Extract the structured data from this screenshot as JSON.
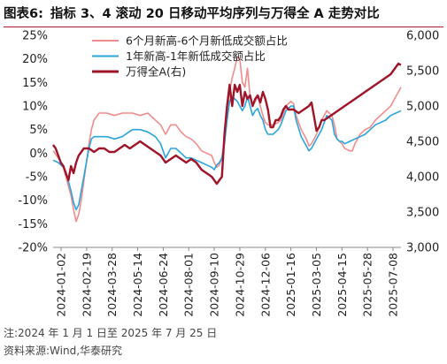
{
  "header": {
    "figure_label": "图表6:",
    "title": "指标 3、4 滚动 20 日移动平均序列与万得全 A 走势对比"
  },
  "footer": {
    "note": "注:2024 年 1 月 1 日至 2025 年 7 月 25 日",
    "source": "资料来源:Wind,华泰研究"
  },
  "colors": {
    "series_pink": "#f08c8c",
    "series_blue": "#2aa4dc",
    "series_darkred": "#a0142a"
  },
  "chart_data": {
    "type": "line",
    "x_tick_labels": [
      "2024-01-02",
      "2024-02-19",
      "2024-03-28",
      "2024-05-14",
      "2024-06-24",
      "2024-08-01",
      "2024-09-10",
      "2024-10-29",
      "2024-12-06",
      "2025-01-16",
      "2025-03-05",
      "2025-04-15",
      "2025-05-28",
      "2025-07-08"
    ],
    "x_domain": [
      0,
      136
    ],
    "y_left": {
      "ticks": [
        "25%",
        "20%",
        "15%",
        "10%",
        "5%",
        "0%",
        "-5%",
        "-10%",
        "-15%",
        "-20%"
      ],
      "lim": [
        -20,
        25
      ]
    },
    "y_right": {
      "ticks": [
        "6,000",
        "5,500",
        "5,000",
        "4,500",
        "4,000",
        "3,500",
        "3,000"
      ],
      "lim": [
        3000,
        6000
      ]
    },
    "legend_position": "top-center",
    "grid": false,
    "series": [
      {
        "name": "6个月新高-6个月新低成交额占比",
        "axis": "left",
        "points": [
          [
            0,
            0.5
          ],
          [
            2,
            -1
          ],
          [
            4,
            -3
          ],
          [
            5,
            -5
          ],
          [
            6,
            -7
          ],
          [
            7,
            -9
          ],
          [
            8,
            -12
          ],
          [
            9,
            -14.5
          ],
          [
            10,
            -13
          ],
          [
            11,
            -10
          ],
          [
            12,
            -6
          ],
          [
            13,
            -2
          ],
          [
            14,
            2
          ],
          [
            15,
            5
          ],
          [
            16,
            7
          ],
          [
            18,
            8.5
          ],
          [
            21,
            8.5
          ],
          [
            24,
            8
          ],
          [
            27,
            8.5
          ],
          [
            31,
            8.5
          ],
          [
            34,
            8
          ],
          [
            37,
            8.5
          ],
          [
            40,
            7
          ],
          [
            42,
            6
          ],
          [
            44,
            4
          ],
          [
            46,
            6
          ],
          [
            48,
            6
          ],
          [
            50,
            4.5
          ],
          [
            52,
            3.5
          ],
          [
            54,
            3
          ],
          [
            56,
            2
          ],
          [
            58,
            0.5
          ],
          [
            60,
            0
          ],
          [
            62,
            -0.5
          ],
          [
            63,
            -2
          ],
          [
            64,
            -3
          ],
          [
            65,
            -2.5
          ],
          [
            66,
            -1
          ],
          [
            67,
            3
          ],
          [
            68,
            8
          ],
          [
            69,
            13
          ],
          [
            70,
            16
          ],
          [
            71,
            18
          ],
          [
            72,
            20.5
          ],
          [
            73,
            20
          ],
          [
            74,
            15
          ],
          [
            75,
            14
          ],
          [
            76,
            18
          ],
          [
            77,
            12
          ],
          [
            78,
            10
          ],
          [
            79,
            11
          ],
          [
            80,
            12
          ],
          [
            81,
            10
          ],
          [
            82,
            8
          ],
          [
            83,
            6.5
          ],
          [
            84,
            6
          ],
          [
            86,
            6
          ],
          [
            88,
            6.5
          ],
          [
            89,
            7
          ],
          [
            91,
            10
          ],
          [
            93,
            11
          ],
          [
            94,
            10.5
          ],
          [
            95,
            8
          ],
          [
            97,
            5
          ],
          [
            99,
            3
          ],
          [
            100,
            1.5
          ],
          [
            101,
            2
          ],
          [
            103,
            4
          ],
          [
            105,
            7
          ],
          [
            107,
            9
          ],
          [
            109,
            8
          ],
          [
            110,
            6
          ],
          [
            111,
            3
          ],
          [
            112,
            2.5
          ],
          [
            113,
            2
          ],
          [
            114,
            1
          ],
          [
            116,
            0.5
          ],
          [
            117,
            0.5
          ],
          [
            118,
            2
          ],
          [
            120,
            4
          ],
          [
            122,
            5
          ],
          [
            124,
            5.5
          ],
          [
            126,
            7
          ],
          [
            128,
            8
          ],
          [
            130,
            9
          ],
          [
            132,
            10
          ],
          [
            134,
            12
          ],
          [
            136,
            14
          ]
        ]
      },
      {
        "name": "1年新高-1年新低成交额占比",
        "axis": "left",
        "points": [
          [
            0,
            -1.5
          ],
          [
            2,
            -2
          ],
          [
            4,
            -3
          ],
          [
            5,
            -4
          ],
          [
            6,
            -6
          ],
          [
            7,
            -8
          ],
          [
            8,
            -10.5
          ],
          [
            9,
            -12
          ],
          [
            10,
            -11
          ],
          [
            11,
            -8
          ],
          [
            12,
            -5
          ],
          [
            13,
            -2
          ],
          [
            14,
            1
          ],
          [
            15,
            3
          ],
          [
            16,
            3.5
          ],
          [
            18,
            3.5
          ],
          [
            21,
            3.5
          ],
          [
            24,
            3
          ],
          [
            27,
            3.5
          ],
          [
            31,
            5
          ],
          [
            34,
            5
          ],
          [
            37,
            4.5
          ],
          [
            40,
            3.5
          ],
          [
            42,
            2
          ],
          [
            44,
            -1
          ],
          [
            46,
            1
          ],
          [
            48,
            1
          ],
          [
            50,
            0
          ],
          [
            52,
            -1
          ],
          [
            54,
            -1
          ],
          [
            56,
            -1.5
          ],
          [
            58,
            -2
          ],
          [
            60,
            -2.5
          ],
          [
            62,
            -3
          ],
          [
            63,
            -3.5
          ],
          [
            64,
            -2.5
          ],
          [
            65,
            -2
          ],
          [
            66,
            -1
          ],
          [
            67,
            2
          ],
          [
            68,
            7
          ],
          [
            69,
            11
          ],
          [
            70,
            12
          ],
          [
            71,
            11.5
          ],
          [
            72,
            11
          ],
          [
            73,
            10
          ],
          [
            74,
            9
          ],
          [
            75,
            10
          ],
          [
            76,
            12
          ],
          [
            77,
            10
          ],
          [
            78,
            8
          ],
          [
            79,
            9
          ],
          [
            80,
            9.5
          ],
          [
            81,
            8
          ],
          [
            82,
            7
          ],
          [
            83,
            5
          ],
          [
            84,
            4
          ],
          [
            86,
            4
          ],
          [
            88,
            5
          ],
          [
            89,
            6
          ],
          [
            91,
            9
          ],
          [
            93,
            10
          ],
          [
            94,
            10
          ],
          [
            95,
            7
          ],
          [
            97,
            3.5
          ],
          [
            99,
            1.5
          ],
          [
            100,
            0.5
          ],
          [
            101,
            1
          ],
          [
            103,
            3
          ],
          [
            105,
            5
          ],
          [
            107,
            8
          ],
          [
            109,
            7
          ],
          [
            110,
            4
          ],
          [
            111,
            3
          ],
          [
            112,
            2.5
          ],
          [
            113,
            2.5
          ],
          [
            114,
            2
          ],
          [
            116,
            2.5
          ],
          [
            118,
            3
          ],
          [
            120,
            3.5
          ],
          [
            122,
            4
          ],
          [
            124,
            5
          ],
          [
            126,
            6
          ],
          [
            128,
            6.5
          ],
          [
            130,
            7
          ],
          [
            132,
            8
          ],
          [
            134,
            8.5
          ],
          [
            136,
            9
          ]
        ]
      },
      {
        "name": "万得全A(右)",
        "axis": "right",
        "points": [
          [
            0,
            4450
          ],
          [
            1,
            4400
          ],
          [
            2,
            4300
          ],
          [
            3,
            4200
          ],
          [
            4,
            4150
          ],
          [
            5,
            4050
          ],
          [
            6,
            3950
          ],
          [
            7,
            4150
          ],
          [
            8,
            4050
          ],
          [
            9,
            4200
          ],
          [
            10,
            4300
          ],
          [
            11,
            4350
          ],
          [
            12,
            4400
          ],
          [
            14,
            4400
          ],
          [
            16,
            4350
          ],
          [
            18,
            4400
          ],
          [
            20,
            4400
          ],
          [
            22,
            4350
          ],
          [
            24,
            4350
          ],
          [
            26,
            4400
          ],
          [
            28,
            4450
          ],
          [
            30,
            4400
          ],
          [
            32,
            4450
          ],
          [
            34,
            4500
          ],
          [
            36,
            4450
          ],
          [
            38,
            4400
          ],
          [
            40,
            4350
          ],
          [
            42,
            4300
          ],
          [
            44,
            4200
          ],
          [
            46,
            4250
          ],
          [
            48,
            4300
          ],
          [
            50,
            4250
          ],
          [
            52,
            4200
          ],
          [
            54,
            4250
          ],
          [
            56,
            4200
          ],
          [
            57,
            4150
          ],
          [
            58,
            4100
          ],
          [
            60,
            4050
          ],
          [
            62,
            4000
          ],
          [
            63,
            3950
          ],
          [
            64,
            3900
          ],
          [
            65,
            3950
          ],
          [
            66,
            4000
          ],
          [
            67,
            4600
          ],
          [
            68,
            5000
          ],
          [
            69,
            5300
          ],
          [
            70,
            5000
          ],
          [
            71,
            5300
          ],
          [
            72,
            5200
          ],
          [
            73,
            5300
          ],
          [
            74,
            5000
          ],
          [
            75,
            5200
          ],
          [
            76,
            5100
          ],
          [
            77,
            5150
          ],
          [
            78,
            5000
          ],
          [
            79,
            5100
          ],
          [
            80,
            5150
          ],
          [
            81,
            5050
          ],
          [
            82,
            5200
          ],
          [
            83,
            5100
          ],
          [
            84,
            4950
          ],
          [
            85,
            4700
          ],
          [
            86,
            4700
          ],
          [
            87,
            4800
          ],
          [
            88,
            4800
          ],
          [
            89,
            4850
          ],
          [
            90,
            4950
          ],
          [
            91,
            5000
          ],
          [
            92,
            4950
          ],
          [
            94,
            4950
          ],
          [
            96,
            4900
          ],
          [
            98,
            4950
          ],
          [
            100,
            5000
          ],
          [
            101,
            5050
          ],
          [
            102,
            4850
          ],
          [
            103,
            4650
          ],
          [
            104,
            4700
          ],
          [
            105,
            4800
          ],
          [
            106,
            4800
          ],
          [
            108,
            4850
          ],
          [
            110,
            4900
          ],
          [
            112,
            4950
          ],
          [
            114,
            5000
          ],
          [
            116,
            5050
          ],
          [
            118,
            5100
          ],
          [
            120,
            5150
          ],
          [
            122,
            5200
          ],
          [
            124,
            5250
          ],
          [
            126,
            5300
          ],
          [
            128,
            5350
          ],
          [
            130,
            5400
          ],
          [
            132,
            5450
          ],
          [
            134,
            5550
          ],
          [
            135,
            5600
          ],
          [
            136,
            5580
          ]
        ]
      }
    ]
  }
}
